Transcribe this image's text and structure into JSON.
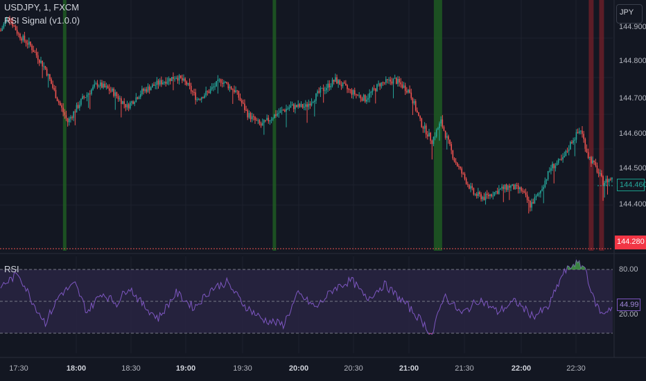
{
  "legend": {
    "symbol": "USDJPY, 1, FXCM",
    "indicator": "RSI Signal (v1.0.0)"
  },
  "currency_button": "JPY",
  "price_axis": {
    "labels": [
      {
        "text": "144.900",
        "value": 144.9
      },
      {
        "text": "144.800",
        "value": 144.8
      },
      {
        "text": "144.700",
        "value": 144.7
      },
      {
        "text": "144.600",
        "value": 144.6
      },
      {
        "text": "144.500",
        "value": 144.5
      },
      {
        "text": "144.400",
        "value": 144.4
      }
    ],
    "current_price": "144.460",
    "low_marker": "144.280"
  },
  "rsi_panel": {
    "title": "RSI",
    "upper_label": "80.00",
    "lower_label": "20.00",
    "current_value": "44.99"
  },
  "time_axis": [
    {
      "text": "17:30",
      "bold": false
    },
    {
      "text": "18:00",
      "bold": true
    },
    {
      "text": "18:30",
      "bold": false
    },
    {
      "text": "19:00",
      "bold": true
    },
    {
      "text": "19:30",
      "bold": false
    },
    {
      "text": "20:00",
      "bold": true
    },
    {
      "text": "20:30",
      "bold": false
    },
    {
      "text": "21:00",
      "bold": true
    },
    {
      "text": "21:30",
      "bold": false
    },
    {
      "text": "22:00",
      "bold": true
    },
    {
      "text": "22:30",
      "bold": false
    }
  ],
  "colors": {
    "background": "#131722",
    "up": "#26a69a",
    "down": "#ef5350",
    "buy_signal": "#1e5a22",
    "sell_signal": "#6a1f28",
    "rsi_line": "#7e57c2",
    "rsi_band": "#2a2545",
    "grid": "#1e222d"
  },
  "chart_data": {
    "type": "candlestick",
    "symbol": "USDJPY",
    "interval": "1",
    "price_range": [
      144.28,
      144.93
    ],
    "path_keypoints": [
      [
        0,
        144.86
      ],
      [
        5,
        144.9
      ],
      [
        12,
        144.85
      ],
      [
        20,
        144.82
      ],
      [
        30,
        144.76
      ],
      [
        38,
        144.68
      ],
      [
        45,
        144.62
      ],
      [
        55,
        144.68
      ],
      [
        65,
        144.72
      ],
      [
        75,
        144.7
      ],
      [
        85,
        144.66
      ],
      [
        95,
        144.7
      ],
      [
        105,
        144.72
      ],
      [
        118,
        144.74
      ],
      [
        125,
        144.72
      ],
      [
        132,
        144.68
      ],
      [
        140,
        144.7
      ],
      [
        148,
        144.73
      ],
      [
        158,
        144.7
      ],
      [
        166,
        144.64
      ],
      [
        175,
        144.61
      ],
      [
        185,
        144.64
      ],
      [
        195,
        144.66
      ],
      [
        205,
        144.66
      ],
      [
        215,
        144.7
      ],
      [
        225,
        144.73
      ],
      [
        235,
        144.7
      ],
      [
        245,
        144.68
      ],
      [
        255,
        144.72
      ],
      [
        265,
        144.73
      ],
      [
        275,
        144.7
      ],
      [
        282,
        144.62
      ],
      [
        290,
        144.57
      ],
      [
        296,
        144.62
      ],
      [
        305,
        144.52
      ],
      [
        312,
        144.47
      ],
      [
        318,
        144.43
      ],
      [
        325,
        144.42
      ],
      [
        335,
        144.44
      ],
      [
        342,
        144.45
      ],
      [
        350,
        144.44
      ],
      [
        356,
        144.4
      ],
      [
        362,
        144.43
      ],
      [
        370,
        144.5
      ],
      [
        378,
        144.52
      ],
      [
        384,
        144.57
      ],
      [
        390,
        144.6
      ],
      [
        395,
        144.53
      ],
      [
        400,
        144.5
      ],
      [
        405,
        144.46
      ],
      [
        410,
        144.47
      ]
    ],
    "rsi_keypoints": [
      [
        0,
        64
      ],
      [
        12,
        76
      ],
      [
        22,
        48
      ],
      [
        30,
        30
      ],
      [
        40,
        57
      ],
      [
        50,
        66
      ],
      [
        58,
        40
      ],
      [
        68,
        58
      ],
      [
        78,
        48
      ],
      [
        86,
        64
      ],
      [
        96,
        46
      ],
      [
        106,
        34
      ],
      [
        118,
        58
      ],
      [
        130,
        44
      ],
      [
        142,
        62
      ],
      [
        152,
        68
      ],
      [
        164,
        46
      ],
      [
        176,
        33
      ],
      [
        190,
        28
      ],
      [
        200,
        57
      ],
      [
        212,
        44
      ],
      [
        224,
        62
      ],
      [
        236,
        70
      ],
      [
        246,
        52
      ],
      [
        258,
        66
      ],
      [
        272,
        48
      ],
      [
        284,
        30
      ],
      [
        290,
        18
      ],
      [
        298,
        56
      ],
      [
        310,
        38
      ],
      [
        322,
        52
      ],
      [
        334,
        40
      ],
      [
        346,
        50
      ],
      [
        358,
        36
      ],
      [
        368,
        44
      ],
      [
        378,
        76
      ],
      [
        386,
        86
      ],
      [
        393,
        82
      ],
      [
        398,
        54
      ],
      [
        404,
        38
      ],
      [
        410,
        44
      ]
    ],
    "rsi_levels": {
      "upper": 80,
      "middle": 50,
      "lower": 20
    },
    "signals": [
      {
        "type": "buy",
        "bar": 43
      },
      {
        "type": "buy",
        "bar": 184
      },
      {
        "type": "buy",
        "bar": 294
      },
      {
        "type": "sell",
        "bar": 397
      },
      {
        "type": "sell",
        "bar": 404
      }
    ]
  }
}
